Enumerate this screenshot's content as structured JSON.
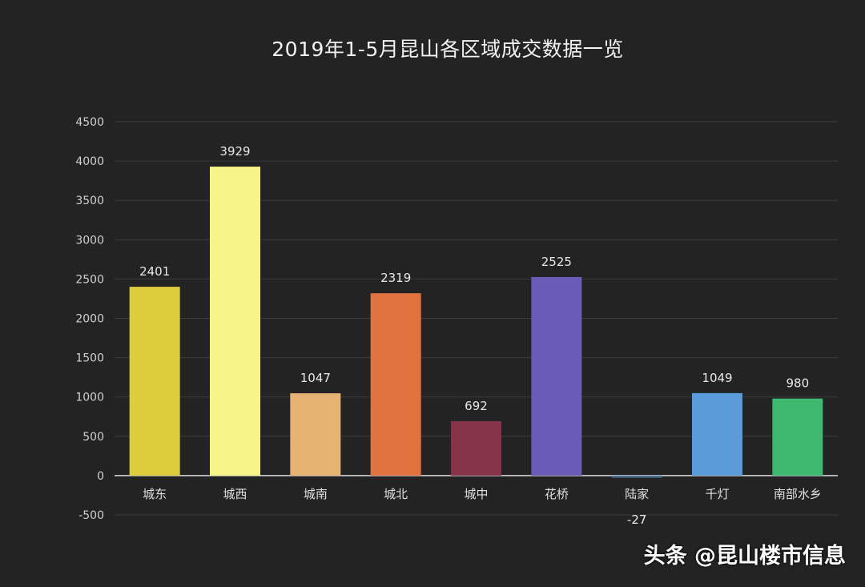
{
  "chart_data": {
    "type": "bar",
    "title": "2019年1-5月昆山各区域成交数据一览",
    "xlabel": "",
    "ylabel": "",
    "ylim": [
      -500,
      4500
    ],
    "yticks": [
      -500,
      0,
      500,
      1000,
      1500,
      2000,
      2500,
      3000,
      3500,
      4000,
      4500
    ],
    "grid": true,
    "categories": [
      "城东",
      "城西",
      "城南",
      "城北",
      "城中",
      "花桥",
      "陆家",
      "千灯",
      "南部水乡"
    ],
    "values": [
      2401,
      3929,
      1047,
      2319,
      692,
      2525,
      -27,
      1049,
      980
    ],
    "colors": [
      "#dccd3f",
      "#f7f48a",
      "#e7b374",
      "#e07240",
      "#86344a",
      "#6a5bb8",
      "#4b6f93",
      "#5b9bd9",
      "#3dba6f"
    ],
    "data_labels": true
  },
  "watermark": {
    "text": "头条 @昆山楼市信息"
  }
}
